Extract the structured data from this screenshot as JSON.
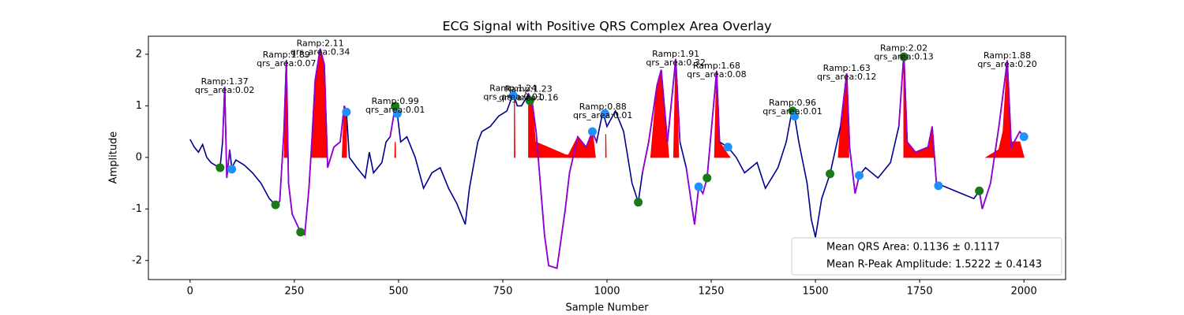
{
  "chart_data": {
    "type": "line",
    "title": "ECG Signal with Positive QRS Complex Area Overlay",
    "xlabel": "Sample Number",
    "ylabel": "Amplitude",
    "xlim": [
      -100,
      2100
    ],
    "ylim": [
      -2.37,
      2.35
    ],
    "xticks": [
      0,
      250,
      500,
      750,
      1000,
      1250,
      1500,
      1750,
      2000
    ],
    "yticks": [
      -2,
      -1,
      0,
      1,
      2
    ],
    "grid": false,
    "series": [
      {
        "name": "ECG",
        "color": "#00008b",
        "x": [
          0,
          10,
          20,
          30,
          40,
          50,
          60,
          72,
          78,
          83,
          88,
          95,
          100,
          110,
          130,
          150,
          170,
          190,
          205,
          215,
          225,
          231,
          236,
          245,
          265,
          275,
          285,
          292,
          300,
          312,
          322,
          330,
          345,
          360,
          370,
          375,
          382,
          400,
          420,
          430,
          440,
          460,
          470,
          480,
          492,
          497,
          505,
          520,
          540,
          560,
          580,
          600,
          620,
          640,
          660,
          670,
          690,
          700,
          720,
          740,
          760,
          775,
          785,
          795,
          812,
          820,
          830,
          840,
          850,
          860,
          880,
          900,
          910,
          930,
          950,
          965,
          975,
          990,
          1000,
          1020,
          1040,
          1060,
          1075,
          1085,
          1100,
          1120,
          1130,
          1145,
          1165,
          1175,
          1190,
          1210,
          1220,
          1230,
          1240,
          1263,
          1270,
          1290,
          1310,
          1330,
          1360,
          1380,
          1410,
          1430,
          1445,
          1450,
          1460,
          1480,
          1490,
          1500,
          1515,
          1535,
          1560,
          1575,
          1582,
          1595,
          1605,
          1620,
          1650,
          1680,
          1700,
          1712,
          1720,
          1740,
          1770,
          1780,
          1790,
          1820,
          1850,
          1880,
          1893,
          1900,
          1920,
          1940,
          1960,
          1970,
          1990,
          2000
        ],
        "values": [
          0.35,
          0.2,
          0.1,
          0.25,
          0,
          -0.1,
          -0.15,
          -0.2,
          0.3,
          1.37,
          -0.4,
          0.15,
          -0.2,
          -0.05,
          -0.15,
          -0.3,
          -0.5,
          -0.8,
          -0.92,
          -0.85,
          0.5,
          1.89,
          -0.5,
          -1.1,
          -1.45,
          -1.5,
          -0.6,
          0.3,
          1.5,
          2.11,
          1.8,
          -0.2,
          0.2,
          0.3,
          1.0,
          0.88,
          0,
          -0.2,
          -0.4,
          0.1,
          -0.3,
          -0.1,
          0.3,
          0.4,
          0.99,
          0.85,
          0.3,
          0.4,
          0,
          -0.6,
          -0.3,
          -0.2,
          -0.6,
          -0.9,
          -1.3,
          -0.6,
          0.3,
          0.5,
          0.6,
          0.8,
          0.9,
          1.24,
          1.0,
          1.0,
          1.23,
          1.1,
          0.5,
          -0.5,
          -1.5,
          -2.1,
          -2.15,
          -1.0,
          -0.3,
          0.4,
          0.2,
          0.5,
          0.3,
          0.88,
          0.6,
          0.9,
          0.5,
          -0.5,
          -0.87,
          -0.3,
          0.3,
          1.4,
          1.7,
          0.3,
          1.91,
          0.3,
          -0.2,
          -1.3,
          -0.57,
          -0.7,
          -0.4,
          1.68,
          0.3,
          0.2,
          0,
          -0.3,
          -0.1,
          -0.6,
          -0.2,
          0.3,
          0.96,
          0.8,
          0.3,
          -0.5,
          -1.2,
          -1.55,
          -0.8,
          -0.32,
          0.6,
          1.63,
          0.2,
          -0.7,
          -0.35,
          -0.2,
          -0.4,
          -0.1,
          0.6,
          2.02,
          0.3,
          0.1,
          0.2,
          0.6,
          -0.5,
          -0.6,
          -0.7,
          -0.8,
          -0.65,
          -1.0,
          -0.5,
          0.6,
          1.88,
          0.2,
          0.5,
          0.4
        ]
      }
    ],
    "qrs_segments": {
      "color": "#9400d3",
      "segments": [
        {
          "x": [
            78,
            83,
            88,
            95
          ],
          "values": [
            0.3,
            1.37,
            -0.4,
            0.15
          ]
        },
        {
          "x": [
            215,
            225,
            231,
            236,
            245,
            265,
            275,
            285,
            292,
            300,
            312,
            322,
            330,
            345,
            360,
            370,
            375
          ],
          "values": [
            -0.85,
            0.5,
            1.89,
            -0.5,
            -1.1,
            -1.45,
            -1.5,
            -0.6,
            0.3,
            1.5,
            2.11,
            1.8,
            -0.2,
            0.2,
            0.3,
            1.0,
            0.88
          ]
        },
        {
          "x": [
            480,
            492,
            497
          ],
          "values": [
            0.4,
            0.99,
            0.85
          ]
        },
        {
          "x": [
            812,
            820,
            830,
            840,
            850,
            860,
            880,
            900,
            910,
            930,
            950,
            965,
            975
          ],
          "values": [
            1.23,
            1.1,
            0.5,
            -0.5,
            -1.5,
            -2.1,
            -2.15,
            -1.0,
            -0.3,
            0.4,
            0.2,
            0.5,
            0.3
          ]
        },
        {
          "x": [
            1085,
            1100,
            1120,
            1130,
            1145,
            1165,
            1175
          ],
          "values": [
            -0.3,
            0.3,
            1.4,
            1.7,
            0.3,
            1.91,
            0.3
          ]
        },
        {
          "x": [
            1190,
            1210,
            1220,
            1230,
            1240,
            1263,
            1270
          ],
          "values": [
            -0.2,
            -1.3,
            -0.57,
            -0.7,
            -0.4,
            1.68,
            0.3
          ]
        },
        {
          "x": [
            1560,
            1575,
            1582,
            1595,
            1605
          ],
          "values": [
            0.6,
            1.63,
            0.2,
            -0.7,
            -0.35
          ]
        },
        {
          "x": [
            1700,
            1712,
            1720,
            1740,
            1770,
            1780,
            1790
          ],
          "values": [
            0.6,
            2.02,
            0.3,
            0.1,
            0.2,
            0.6,
            -0.5
          ]
        },
        {
          "x": [
            1893,
            1900,
            1920,
            1940,
            1960,
            1970,
            1990,
            2000
          ],
          "values": [
            -0.65,
            -1.0,
            -0.5,
            0.6,
            1.88,
            0.2,
            0.5,
            0.4
          ]
        }
      ]
    },
    "areas": {
      "color": "#ff0000",
      "regions": [
        {
          "x": [
            226,
            231,
            234
          ],
          "values": [
            0,
            1.89,
            0
          ]
        },
        {
          "x": [
            290,
            300,
            312,
            322,
            328
          ],
          "values": [
            0,
            1.5,
            2.11,
            1.8,
            0
          ]
        },
        {
          "x": [
            365,
            370,
            375,
            375
          ],
          "values": [
            0,
            1.0,
            0.88,
            0
          ]
        },
        {
          "x": [
            491,
            492,
            493
          ],
          "values": [
            0,
            0.3,
            0
          ]
        },
        {
          "x": [
            778,
            778,
            779
          ],
          "values": [
            0,
            1.2,
            0
          ]
        },
        {
          "x": [
            812,
            812,
            820,
            828,
            900,
            960
          ],
          "values": [
            0,
            1.23,
            1.1,
            0.3,
            0.05,
            0
          ]
        },
        {
          "x": [
            905,
            930,
            950,
            965,
            972
          ],
          "values": [
            0,
            0.4,
            0.2,
            0.5,
            0
          ]
        },
        {
          "x": [
            997,
            997,
            998
          ],
          "values": [
            0,
            0.45,
            0
          ]
        },
        {
          "x": [
            1105,
            1120,
            1130,
            1145,
            1148
          ],
          "values": [
            0,
            1.4,
            1.7,
            0.3,
            0
          ]
        },
        {
          "x": [
            1160,
            1165,
            1172
          ],
          "values": [
            0,
            1.91,
            0
          ]
        },
        {
          "x": [
            1258,
            1263,
            1270,
            1290,
            1295
          ],
          "values": [
            0,
            1.68,
            0.3,
            0.05,
            0
          ]
        },
        {
          "x": [
            1555,
            1560,
            1575,
            1580
          ],
          "values": [
            0,
            0.6,
            1.63,
            0
          ]
        },
        {
          "x": [
            1712,
            1712,
            1720,
            1740,
            1770,
            1780,
            1786
          ],
          "values": [
            0,
            2.02,
            0.3,
            0.1,
            0.2,
            0.6,
            0
          ]
        },
        {
          "x": [
            1910,
            1940,
            1950,
            1960,
            1968,
            1990,
            2000
          ],
          "values": [
            0,
            0.15,
            0.5,
            1.88,
            0.3,
            0.3,
            0
          ]
        }
      ]
    },
    "points": [
      {
        "color": "#1a7a1a",
        "x": [
          72,
          205,
          265,
          492,
          815,
          1075,
          1240,
          1445,
          1535,
          1712,
          1893
        ],
        "values": [
          -0.2,
          -0.92,
          -1.45,
          0.99,
          1.1,
          -0.87,
          -0.4,
          0.9,
          -0.32,
          1.95,
          -0.65
        ]
      },
      {
        "color": "#1e90ff",
        "x": [
          100,
          375,
          497,
          775,
          965,
          995,
          1220,
          1290,
          1450,
          1605,
          1795,
          2000
        ],
        "values": [
          -0.23,
          0.88,
          0.85,
          1.2,
          0.5,
          0.85,
          -0.57,
          0.2,
          0.8,
          -0.35,
          -0.55,
          0.4
        ]
      }
    ],
    "annotations": [
      {
        "x": 83,
        "y": 1.37,
        "ramp": "Ramp:1.37",
        "area": "qrs_area:0.02"
      },
      {
        "x": 231,
        "y": 1.89,
        "ramp": "Ramp:1.89",
        "area": "qrs_area:0.07"
      },
      {
        "x": 312,
        "y": 2.11,
        "ramp": "Ramp:2.11",
        "area": "qrs_area:0.34"
      },
      {
        "x": 492,
        "y": 0.99,
        "ramp": "Ramp:0.99",
        "area": "qrs_area:0.01"
      },
      {
        "x": 775,
        "y": 1.24,
        "ramp": "Ramp:1.24",
        "area": "qrs_area:0.01"
      },
      {
        "x": 812,
        "y": 1.23,
        "ramp": "Ramp:1.23",
        "area": "qrs_area:0.16"
      },
      {
        "x": 990,
        "y": 0.88,
        "ramp": "Ramp:0.88",
        "area": "qrs_area:0.01"
      },
      {
        "x": 1165,
        "y": 1.91,
        "ramp": "Ramp:1.91",
        "area": "qrs_area:0.32"
      },
      {
        "x": 1263,
        "y": 1.68,
        "ramp": "Ramp:1.68",
        "area": "qrs_area:0.08"
      },
      {
        "x": 1445,
        "y": 0.96,
        "ramp": "Ramp:0.96",
        "area": "qrs_area:0.01"
      },
      {
        "x": 1575,
        "y": 1.63,
        "ramp": "Ramp:1.63",
        "area": "qrs_area:0.12"
      },
      {
        "x": 1712,
        "y": 2.02,
        "ramp": "Ramp:2.02",
        "area": "qrs_area:0.13"
      },
      {
        "x": 1960,
        "y": 1.88,
        "ramp": "Ramp:1.88",
        "area": "qrs_area:0.20"
      }
    ],
    "legend": {
      "loc": "lower right",
      "entries": [
        "Mean QRS Area: 0.1136 ± 0.1117",
        "Mean R-Peak Amplitude: 1.5222 ± 0.4143"
      ]
    }
  }
}
